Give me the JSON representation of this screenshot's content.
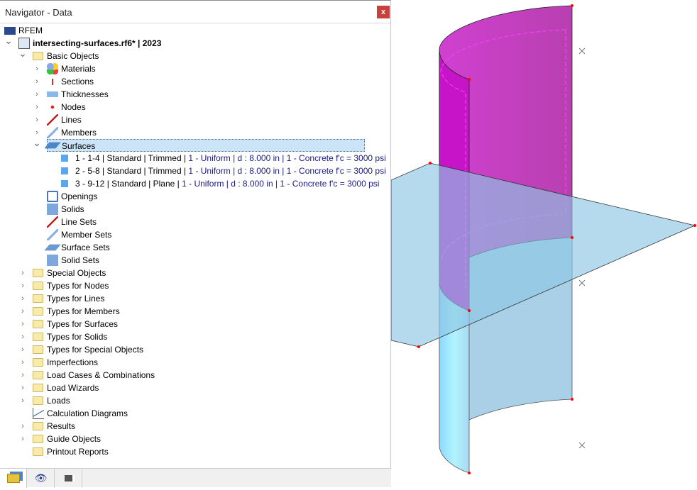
{
  "window": {
    "title": "Navigator - Data",
    "close_label": "x"
  },
  "tree": {
    "root": "RFEM",
    "file": "intersecting-surfaces.rf6* | 2023",
    "basic_objects": "Basic Objects",
    "basic_items": [
      "Materials",
      "Sections",
      "Thicknesses",
      "Nodes",
      "Lines",
      "Members",
      "Surfaces"
    ],
    "surfaces": [
      {
        "a": "1 - 1-4 | Standard | Trimmed | ",
        "b": "1 - Uniform | d : 8.000 in | 1 - Concrete f'c = 3000 psi"
      },
      {
        "a": "2 - 5-8 | Standard | Trimmed | ",
        "b": "1 - Uniform | d : 8.000 in | 1 - Concrete f'c = 3000 psi"
      },
      {
        "a": "3 - 9-12 | Standard | Plane | ",
        "b": "1 - Uniform | d : 8.000 in | 1 - Concrete f'c = 3000 psi"
      }
    ],
    "basic_items2": [
      "Openings",
      "Solids",
      "Line Sets",
      "Member Sets",
      "Surface Sets",
      "Solid Sets"
    ],
    "folders": [
      "Special Objects",
      "Types for Nodes",
      "Types for Lines",
      "Types for Members",
      "Types for Surfaces",
      "Types for Solids",
      "Types for Special Objects",
      "Imperfections",
      "Load Cases & Combinations",
      "Load Wizards",
      "Loads",
      "Calculation Diagrams",
      "Results",
      "Guide Objects",
      "Printout Reports"
    ]
  },
  "colors": {
    "surface_cylinder_top": "#c040c0",
    "surface_cylinder_bottom": "#a8dcf0",
    "surface_plane": "#a9d3ea",
    "node": "#ff0000"
  }
}
